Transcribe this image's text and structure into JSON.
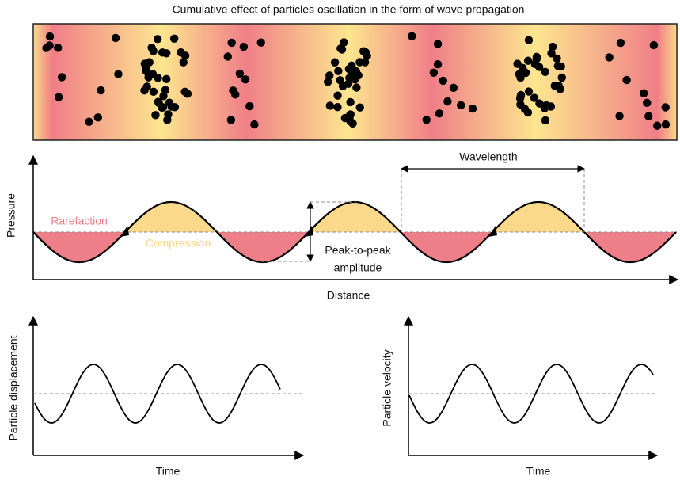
{
  "title": "Cumulative effect of particles oscillation in the form of wave propagation",
  "pressure_plot": {
    "y_label": "Pressure",
    "x_label": "Distance",
    "rarefaction": "Rarefaction",
    "compression": "Compression",
    "wavelength": "Wavelength",
    "amplitude": [
      "Peak-to-peak",
      "amplitude"
    ]
  },
  "displacement_plot": {
    "y_label": "Particle displacement",
    "x_label": "Time"
  },
  "velocity_plot": {
    "y_label": "Particle velocity",
    "x_label": "Time"
  }
}
